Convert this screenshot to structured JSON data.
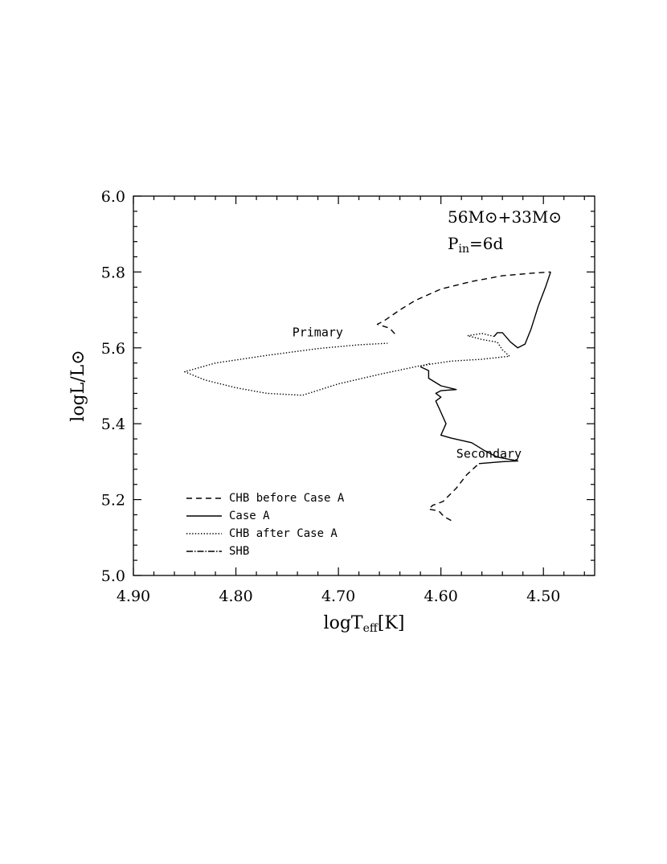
{
  "chart_data": {
    "type": "line",
    "xlabel": "logT",
    "xlabel_sub": "eff",
    "xlabel_unit": "[K]",
    "ylabel": "logL/L⊙",
    "xlim": [
      4.9,
      4.45
    ],
    "ylim": [
      5.0,
      6.0
    ],
    "x_reversed": true,
    "x_ticks": [
      "4.90",
      "4.80",
      "4.70",
      "4.60",
      "4.50"
    ],
    "y_ticks": [
      "5.0",
      "5.2",
      "5.4",
      "5.6",
      "5.8",
      "6.0"
    ],
    "annotation_masses": "56M⊙+33M⊙",
    "annotation_period_p": "P",
    "annotation_period_sub": "in",
    "annotation_period_value": "=6d",
    "legend_position": "bottom-left",
    "legend": [
      {
        "label": "CHB before Case A",
        "style": "dashed"
      },
      {
        "label": "Case A",
        "style": "solid"
      },
      {
        "label": "CHB after Case A",
        "style": "dotted"
      },
      {
        "label": "SHB",
        "style": "dashdot"
      }
    ],
    "curve_labels": [
      {
        "text": "Primary",
        "x": 4.745,
        "y": 5.63
      },
      {
        "text": "Secondary",
        "x": 4.585,
        "y": 5.31
      }
    ],
    "series": [
      {
        "name": "CHB before Case A",
        "style": "dashed",
        "x": [
          4.645,
          4.65,
          4.662,
          4.655,
          4.64,
          4.625,
          4.6,
          4.57,
          4.54,
          4.51,
          4.493
        ],
        "y": [
          5.637,
          5.652,
          5.662,
          5.672,
          5.7,
          5.725,
          5.755,
          5.775,
          5.79,
          5.797,
          5.8
        ]
      },
      {
        "name": "Case A",
        "style": "solid",
        "x": [
          4.493,
          4.498,
          4.505,
          4.512,
          4.518,
          4.525,
          4.532,
          4.54,
          4.545,
          4.548
        ],
        "y": [
          5.8,
          5.76,
          5.71,
          5.65,
          5.61,
          5.6,
          5.615,
          5.64,
          5.64,
          5.63
        ]
      },
      {
        "name": "CHB after Case A",
        "style": "dotted",
        "x": [
          4.548,
          4.56,
          4.574,
          4.56,
          4.545,
          4.54,
          4.533,
          4.56,
          4.59,
          4.62,
          4.66,
          4.7,
          4.735,
          4.77,
          4.8,
          4.83,
          4.85,
          4.82,
          4.77,
          4.72,
          4.68,
          4.652
        ],
        "y": [
          5.63,
          5.638,
          5.632,
          5.622,
          5.615,
          5.595,
          5.578,
          5.57,
          5.565,
          5.553,
          5.53,
          5.505,
          5.475,
          5.48,
          5.495,
          5.515,
          5.537,
          5.56,
          5.58,
          5.598,
          5.608,
          5.612
        ]
      },
      {
        "name": "Secondary (CHB before Case A)",
        "style": "dashed",
        "x": [
          4.59,
          4.597,
          4.602,
          4.612,
          4.608,
          4.598,
          4.585,
          4.575,
          4.563
        ],
        "y": [
          5.145,
          5.155,
          5.17,
          5.175,
          5.185,
          5.195,
          5.23,
          5.265,
          5.295
        ]
      },
      {
        "name": "Secondary (Case A)",
        "style": "solid",
        "x": [
          4.563,
          4.54,
          4.525,
          4.545,
          4.558,
          4.57,
          4.59,
          4.6,
          4.595,
          4.6,
          4.605,
          4.6,
          4.605,
          4.6,
          4.585,
          4.6,
          4.612,
          4.612,
          4.62
        ],
        "y": [
          5.295,
          5.3,
          5.302,
          5.312,
          5.33,
          5.35,
          5.362,
          5.37,
          5.4,
          5.43,
          5.46,
          5.47,
          5.48,
          5.487,
          5.49,
          5.5,
          5.52,
          5.54,
          5.55
        ]
      },
      {
        "name": "Secondary (CHB after Case A)",
        "style": "dotted",
        "x": [
          4.62,
          4.61
        ],
        "y": [
          5.55,
          5.56
        ]
      }
    ]
  }
}
